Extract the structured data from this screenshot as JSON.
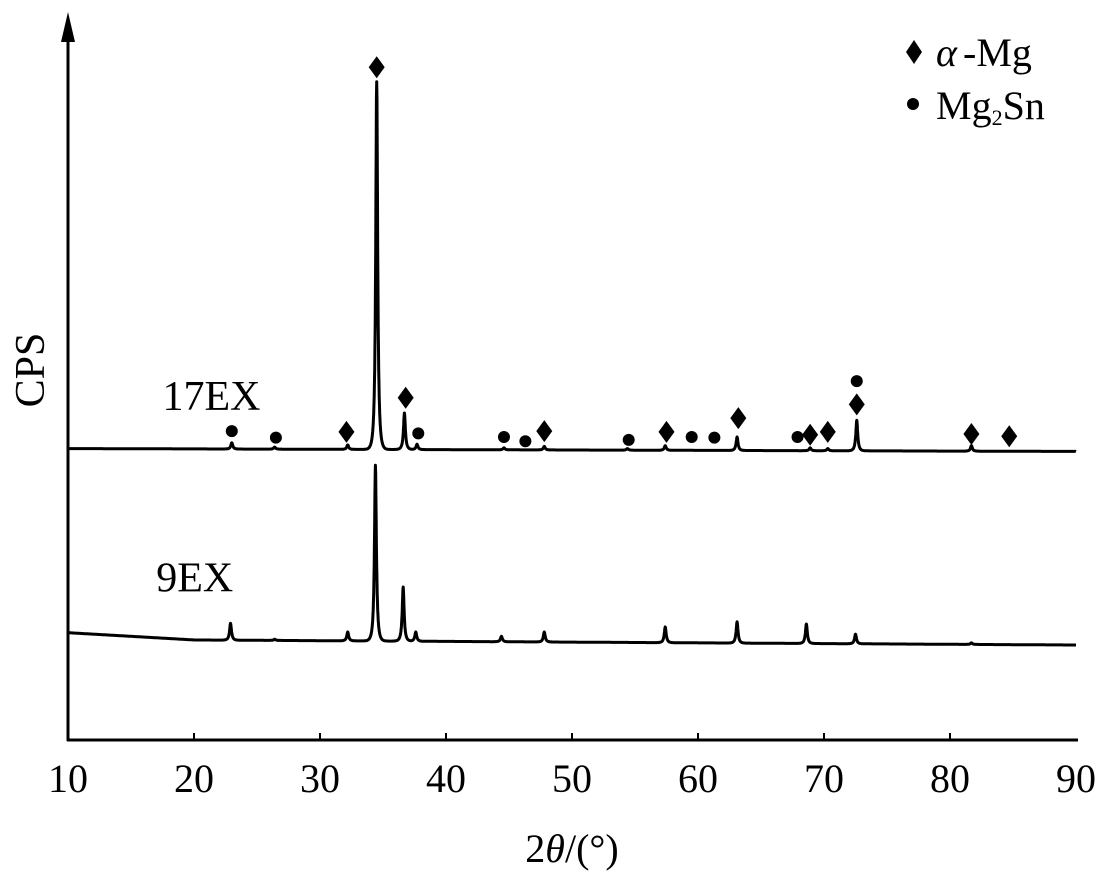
{
  "chart_data": {
    "type": "line",
    "title": "",
    "xlabel": {
      "prefix": "2",
      "symbol": "θ",
      "suffix": "/(°)"
    },
    "ylabel": "CPS",
    "xlim": [
      10,
      90
    ],
    "ylim": [
      0,
      100
    ],
    "y_units": "arbitrary (CPS, no tick labels)",
    "xticks": [
      10,
      20,
      30,
      40,
      50,
      60,
      70,
      80,
      90
    ],
    "grid": false,
    "legend": {
      "placement": "top-right",
      "entries": [
        {
          "marker": "diamond",
          "symbol": "α",
          "text": "-Mg"
        },
        {
          "marker": "circle",
          "base": "Mg",
          "sub": "2",
          "rest": "Sn"
        }
      ]
    },
    "series": [
      {
        "name": "17EX",
        "baseline": [
          [
            10,
            40.2
          ],
          [
            90,
            39.8
          ]
        ],
        "peaks": [
          {
            "x": 23.0,
            "y": 41.0
          },
          {
            "x": 26.4,
            "y": 40.4
          },
          {
            "x": 32.2,
            "y": 40.7
          },
          {
            "x": 34.5,
            "y": 90.8
          },
          {
            "x": 36.7,
            "y": 45.1
          },
          {
            "x": 37.7,
            "y": 40.8
          },
          {
            "x": 44.6,
            "y": 40.3
          },
          {
            "x": 47.8,
            "y": 40.5
          },
          {
            "x": 54.4,
            "y": 40.2
          },
          {
            "x": 57.4,
            "y": 40.6
          },
          {
            "x": 63.1,
            "y": 41.8
          },
          {
            "x": 68.9,
            "y": 40.3
          },
          {
            "x": 70.3,
            "y": 40.2
          },
          {
            "x": 72.6,
            "y": 44.1
          },
          {
            "x": 81.7,
            "y": 40.6
          }
        ]
      },
      {
        "name": "9EX",
        "baseline": [
          [
            10,
            14.8
          ],
          [
            20,
            13.8
          ],
          [
            90,
            13.1
          ]
        ],
        "peaks": [
          {
            "x": 22.9,
            "y": 16.1
          },
          {
            "x": 26.4,
            "y": 13.9
          },
          {
            "x": 32.2,
            "y": 14.9
          },
          {
            "x": 34.4,
            "y": 37.9
          },
          {
            "x": 36.6,
            "y": 21.1
          },
          {
            "x": 37.6,
            "y": 14.9
          },
          {
            "x": 44.4,
            "y": 14.3
          },
          {
            "x": 47.8,
            "y": 14.9
          },
          {
            "x": 57.4,
            "y": 15.6
          },
          {
            "x": 63.1,
            "y": 16.3
          },
          {
            "x": 68.6,
            "y": 16.0
          },
          {
            "x": 72.5,
            "y": 14.6
          },
          {
            "x": 81.7,
            "y": 13.4
          }
        ]
      }
    ],
    "series_labels": [
      {
        "text": "17EX",
        "x": 17.5,
        "y": 45.5
      },
      {
        "text": "9EX",
        "x": 17.0,
        "y": 20.5
      }
    ],
    "phase_markers": [
      {
        "x": 23.0,
        "y": 42.6,
        "phase": "Mg2Sn"
      },
      {
        "x": 26.5,
        "y": 41.7,
        "phase": "Mg2Sn"
      },
      {
        "x": 32.1,
        "y": 42.5,
        "phase": "α-Mg"
      },
      {
        "x": 34.5,
        "y": 92.8,
        "phase": "α-Mg"
      },
      {
        "x": 36.8,
        "y": 47.2,
        "phase": "α-Mg"
      },
      {
        "x": 37.8,
        "y": 42.3,
        "phase": "Mg2Sn"
      },
      {
        "x": 44.6,
        "y": 41.8,
        "phase": "Mg2Sn"
      },
      {
        "x": 46.3,
        "y": 41.2,
        "phase": "Mg2Sn"
      },
      {
        "x": 47.8,
        "y": 42.6,
        "phase": "α-Mg"
      },
      {
        "x": 54.5,
        "y": 41.4,
        "phase": "Mg2Sn"
      },
      {
        "x": 57.5,
        "y": 42.5,
        "phase": "α-Mg"
      },
      {
        "x": 59.5,
        "y": 41.8,
        "phase": "Mg2Sn"
      },
      {
        "x": 61.3,
        "y": 41.7,
        "phase": "Mg2Sn"
      },
      {
        "x": 63.2,
        "y": 44.4,
        "phase": "α-Mg"
      },
      {
        "x": 67.9,
        "y": 41.8,
        "phase": "Mg2Sn"
      },
      {
        "x": 68.9,
        "y": 42.1,
        "phase": "α-Mg"
      },
      {
        "x": 70.3,
        "y": 42.5,
        "phase": "α-Mg"
      },
      {
        "x": 72.6,
        "y": 46.3,
        "phase": "α-Mg"
      },
      {
        "x": 72.6,
        "y": 49.5,
        "phase": "Mg2Sn"
      },
      {
        "x": 81.7,
        "y": 42.2,
        "phase": "α-Mg"
      },
      {
        "x": 84.7,
        "y": 41.9,
        "phase": "α-Mg"
      }
    ]
  }
}
